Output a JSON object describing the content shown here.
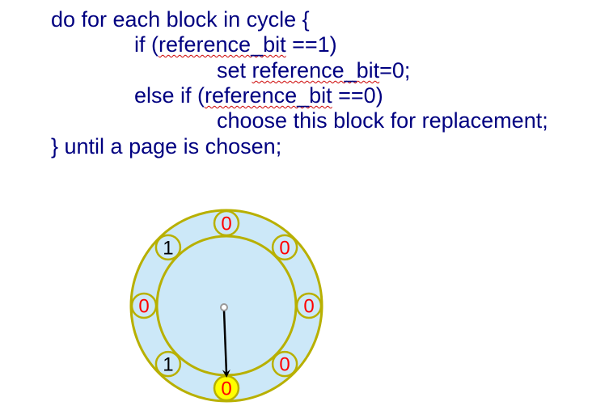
{
  "code": {
    "line1": "do for each block in cycle {",
    "line2_prefix": "if (",
    "line2_ident": "reference_bit",
    "line2_suffix": " ==1)",
    "line3_prefix": "set ",
    "line3_ident": "reference_bit",
    "line3_suffix": "=0;",
    "line4_prefix": "else if (",
    "line4_ident": "reference_bit",
    "line4_suffix": " ==0)",
    "line5": "choose this block for replacement;",
    "line6": "} until a page is chosen;"
  },
  "clock": {
    "colors": {
      "ring_fill": "#cce8f8",
      "ring_stroke": "#b8b000",
      "zero_text": "#ff0000",
      "one_text": "#000000",
      "selected_fill": "#ffff00",
      "pointer": "#000000"
    },
    "bits": [
      {
        "value": "0",
        "angle_deg": 0,
        "selected": false
      },
      {
        "value": "0",
        "angle_deg": 45,
        "selected": false
      },
      {
        "value": "0",
        "angle_deg": 90,
        "selected": false
      },
      {
        "value": "0",
        "angle_deg": 135,
        "selected": false
      },
      {
        "value": "0",
        "angle_deg": 180,
        "selected": true
      },
      {
        "value": "1",
        "angle_deg": 225,
        "selected": false
      },
      {
        "value": "0",
        "angle_deg": 270,
        "selected": false
      },
      {
        "value": "1",
        "angle_deg": 315,
        "selected": false
      }
    ],
    "pointer_angle_deg": 180
  }
}
